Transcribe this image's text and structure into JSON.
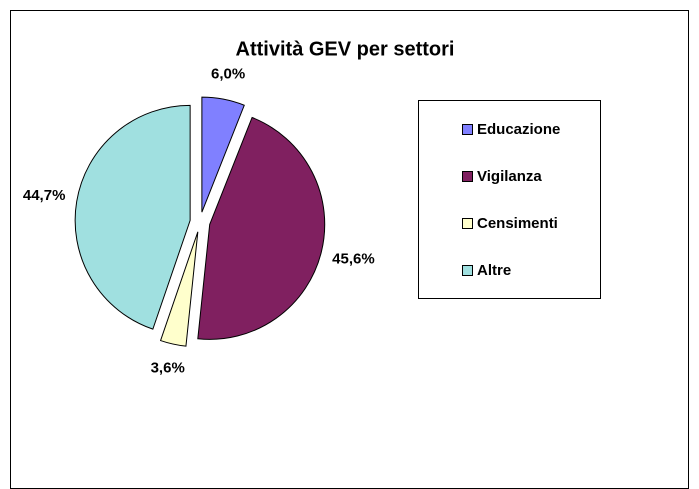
{
  "chart_data": {
    "type": "pie",
    "title": "Attività GEV per settori",
    "categories": [
      "Educazione",
      "Vigilanza",
      "Censimenti",
      "Altre"
    ],
    "values": [
      6.0,
      45.6,
      3.6,
      44.7
    ],
    "value_labels": [
      "6,0%",
      "45,6%",
      "3,6%",
      "44,7%"
    ],
    "colors": [
      "#8080ff",
      "#802060",
      "#ffffcc",
      "#a0e0e0"
    ],
    "legend": "right",
    "exploded": true
  }
}
